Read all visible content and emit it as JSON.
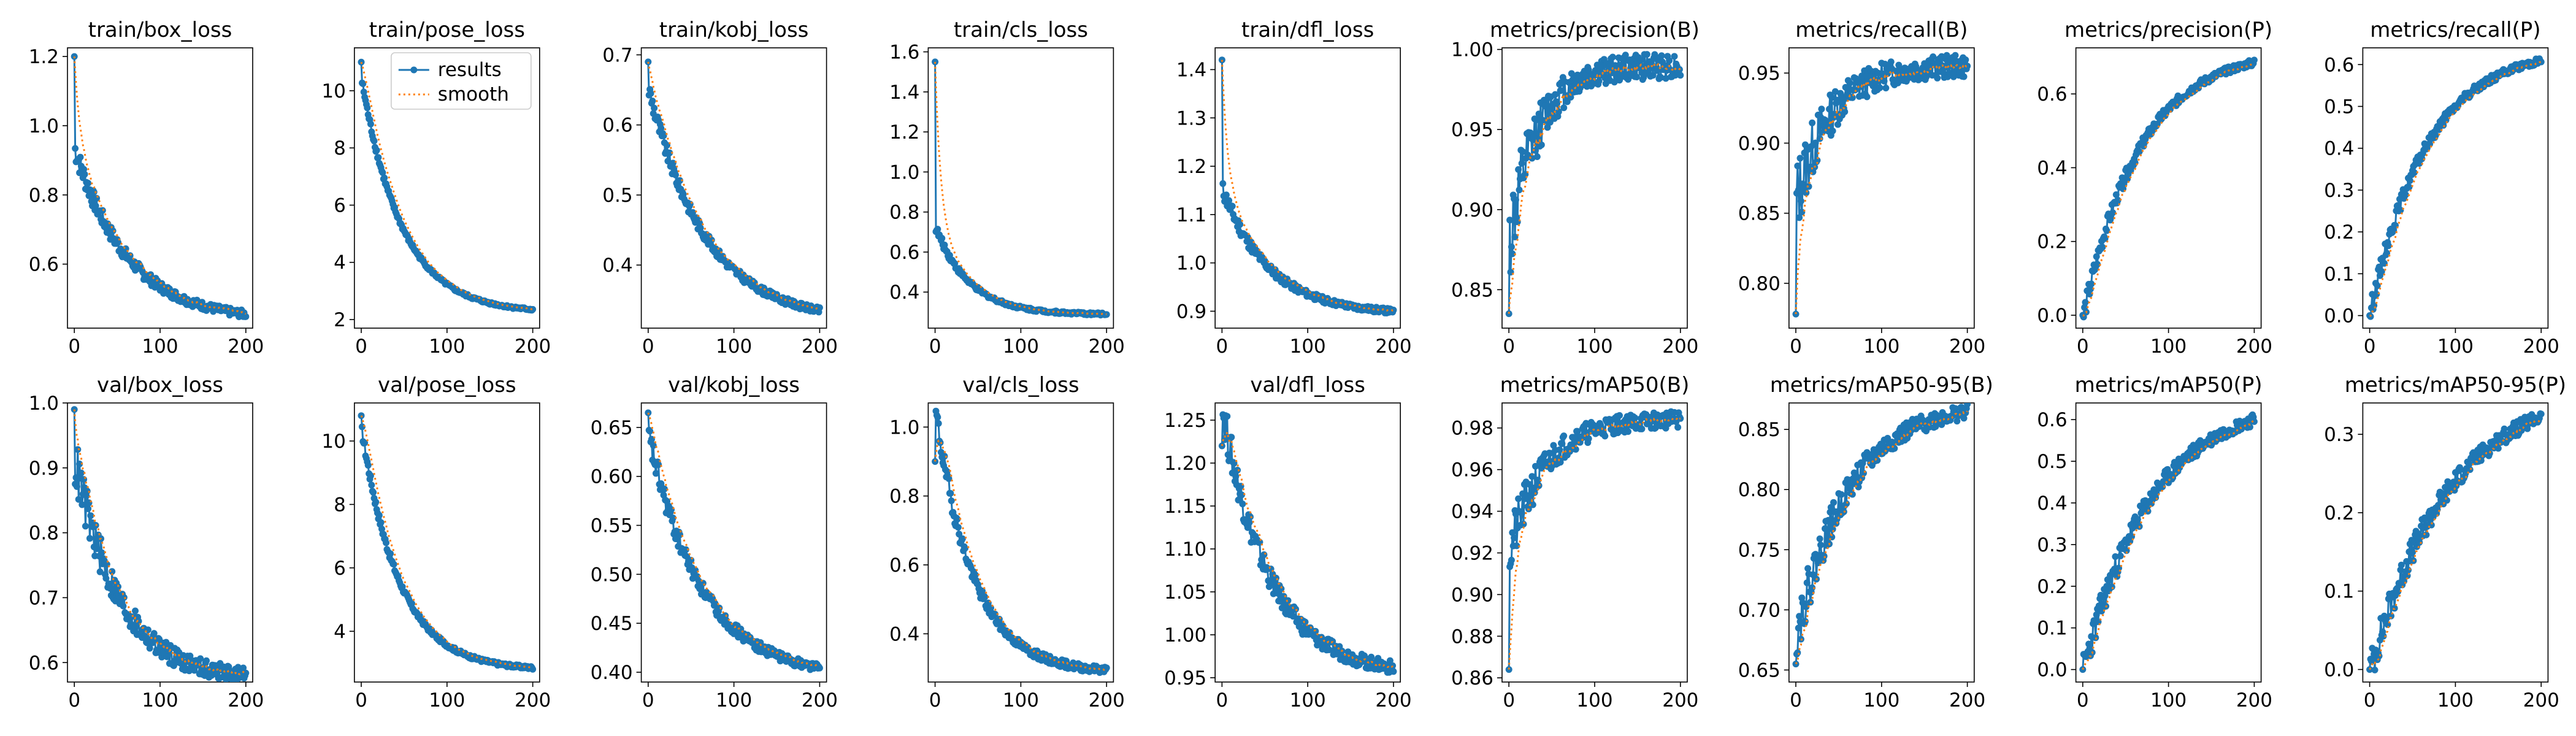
{
  "figure": {
    "legend": [
      "results",
      "smooth"
    ],
    "legend_placement": "top-right of train/pose_loss panel",
    "colors": {
      "results": "#1f77b4",
      "smooth": "#ff7f0e"
    },
    "grid": false
  },
  "chart_data": [
    {
      "title": "train/box_loss",
      "type": "line",
      "xlim": [
        -8,
        208
      ],
      "ylim": [
        0.415,
        1.225
      ],
      "xticks": [
        0,
        100,
        200
      ],
      "yticks": [
        0.6,
        0.8,
        1.0,
        1.2
      ],
      "ytick_labels": [
        "0.6",
        "0.8",
        "1.0",
        "1.2"
      ],
      "shape": "decay",
      "x": [
        0,
        200
      ],
      "start": 1.2,
      "second": 0.93,
      "end": 0.455,
      "curve": 3.2,
      "noise": 0.01
    },
    {
      "title": "train/pose_loss",
      "type": "line",
      "xlim": [
        -8,
        208
      ],
      "ylim": [
        1.7,
        11.5
      ],
      "xticks": [
        0,
        100,
        200
      ],
      "yticks": [
        2,
        4,
        6,
        8,
        10
      ],
      "ytick_labels": [
        "2",
        "4",
        "6",
        "8",
        "10"
      ],
      "shape": "decay",
      "x": [
        0,
        200
      ],
      "start": 11.0,
      "second": 10.3,
      "end": 2.35,
      "curve": 4.2,
      "noise": 0.04,
      "legend": true
    },
    {
      "title": "train/kobj_loss",
      "type": "line",
      "xlim": [
        -8,
        208
      ],
      "ylim": [
        0.31,
        0.71
      ],
      "xticks": [
        0,
        100,
        200
      ],
      "yticks": [
        0.4,
        0.5,
        0.6,
        0.7
      ],
      "ytick_labels": [
        "0.4",
        "0.5",
        "0.6",
        "0.7"
      ],
      "shape": "decay",
      "x": [
        0,
        200
      ],
      "start": 0.69,
      "second": 0.65,
      "end": 0.335,
      "curve": 3.0,
      "noise": 0.004
    },
    {
      "title": "train/cls_loss",
      "type": "line",
      "xlim": [
        -8,
        208
      ],
      "ylim": [
        0.22,
        1.62
      ],
      "xticks": [
        0,
        100,
        200
      ],
      "yticks": [
        0.4,
        0.6,
        0.8,
        1.0,
        1.2,
        1.4,
        1.6
      ],
      "ytick_labels": [
        "0.4",
        "0.6",
        "0.8",
        "1.0",
        "1.2",
        "1.4",
        "1.6"
      ],
      "shape": "decay",
      "x": [
        0,
        200
      ],
      "start": 1.55,
      "second": 0.72,
      "end": 0.29,
      "curve": 5.0,
      "noise": 0.006
    },
    {
      "title": "train/dfl_loss",
      "type": "line",
      "xlim": [
        -8,
        208
      ],
      "ylim": [
        0.865,
        1.445
      ],
      "xticks": [
        0,
        100,
        200
      ],
      "yticks": [
        0.9,
        1.0,
        1.1,
        1.2,
        1.3,
        1.4
      ],
      "ytick_labels": [
        "0.9",
        "1.0",
        "1.1",
        "1.2",
        "1.3",
        "1.4"
      ],
      "shape": "decay",
      "x": [
        0,
        200
      ],
      "start": 1.42,
      "second": 1.15,
      "end": 0.9,
      "curve": 3.6,
      "noise": 0.005
    },
    {
      "title": "metrics/precision(B)",
      "type": "line",
      "xlim": [
        -8,
        208
      ],
      "ylim": [
        0.826,
        1.001
      ],
      "xticks": [
        0,
        100,
        200
      ],
      "yticks": [
        0.85,
        0.9,
        0.95,
        1.0
      ],
      "ytick_labels": [
        "0.85",
        "0.90",
        "0.95",
        "1.00"
      ],
      "shape": "rise",
      "x": [
        0,
        200
      ],
      "start": 0.835,
      "second": 0.88,
      "end": 0.99,
      "curve": 6.0,
      "noise": 0.008
    },
    {
      "title": "metrics/recall(B)",
      "type": "line",
      "xlim": [
        -8,
        208
      ],
      "ylim": [
        0.768,
        0.968
      ],
      "xticks": [
        0,
        100,
        200
      ],
      "yticks": [
        0.8,
        0.85,
        0.9,
        0.95
      ],
      "ytick_labels": [
        "0.80",
        "0.85",
        "0.90",
        "0.95"
      ],
      "shape": "rise",
      "x": [
        0,
        200
      ],
      "start": 0.778,
      "second": 0.86,
      "end": 0.955,
      "curve": 5.0,
      "noise": 0.008
    },
    {
      "title": "metrics/precision(P)",
      "type": "line",
      "xlim": [
        -8,
        208
      ],
      "ylim": [
        -0.035,
        0.725
      ],
      "xticks": [
        0,
        100,
        200
      ],
      "yticks": [
        0.0,
        0.2,
        0.4,
        0.6
      ],
      "ytick_labels": [
        "0.0",
        "0.2",
        "0.4",
        "0.6"
      ],
      "shape": "rise",
      "x": [
        0,
        200
      ],
      "start": 0.0,
      "second": 0.0,
      "end": 0.685,
      "curve": 3.0,
      "noise": 0.008
    },
    {
      "title": "metrics/recall(P)",
      "type": "line",
      "xlim": [
        -8,
        208
      ],
      "ylim": [
        -0.03,
        0.64
      ],
      "xticks": [
        0,
        100,
        200
      ],
      "yticks": [
        0.0,
        0.1,
        0.2,
        0.3,
        0.4,
        0.5,
        0.6
      ],
      "ytick_labels": [
        "0.0",
        "0.1",
        "0.2",
        "0.3",
        "0.4",
        "0.5",
        "0.6"
      ],
      "shape": "rise",
      "x": [
        0,
        200
      ],
      "start": 0.0,
      "second": 0.01,
      "end": 0.61,
      "curve": 3.0,
      "noise": 0.007
    },
    {
      "title": "val/box_loss",
      "type": "line",
      "xlim": [
        -8,
        208
      ],
      "ylim": [
        0.57,
        1.0
      ],
      "xticks": [
        0,
        100,
        200
      ],
      "yticks": [
        0.6,
        0.7,
        0.8,
        0.9,
        1.0
      ],
      "ytick_labels": [
        "0.6",
        "0.7",
        "0.8",
        "0.9",
        "1.0"
      ],
      "shape": "decay",
      "x": [
        0,
        200
      ],
      "start": 0.99,
      "second": 0.91,
      "end": 0.58,
      "curve": 3.8,
      "noise": 0.012
    },
    {
      "title": "val/pose_loss",
      "type": "line",
      "xlim": [
        -8,
        208
      ],
      "ylim": [
        2.4,
        11.2
      ],
      "xticks": [
        0,
        100,
        200
      ],
      "yticks": [
        4,
        6,
        8,
        10
      ],
      "ytick_labels": [
        "4",
        "6",
        "8",
        "10"
      ],
      "shape": "decay",
      "x": [
        0,
        200
      ],
      "start": 10.8,
      "second": 10.3,
      "end": 2.85,
      "curve": 4.5,
      "noise": 0.05
    },
    {
      "title": "val/kobj_loss",
      "type": "line",
      "xlim": [
        -8,
        208
      ],
      "ylim": [
        0.39,
        0.675
      ],
      "xticks": [
        0,
        100,
        200
      ],
      "yticks": [
        0.4,
        0.45,
        0.5,
        0.55,
        0.6,
        0.65
      ],
      "ytick_labels": [
        "0.40",
        "0.45",
        "0.50",
        "0.55",
        "0.60",
        "0.65"
      ],
      "shape": "decay",
      "x": [
        0,
        200
      ],
      "start": 0.665,
      "second": 0.64,
      "end": 0.405,
      "curve": 3.2,
      "noise": 0.004
    },
    {
      "title": "val/cls_loss",
      "type": "line",
      "xlim": [
        -8,
        208
      ],
      "ylim": [
        0.26,
        1.07
      ],
      "xticks": [
        0,
        100,
        200
      ],
      "yticks": [
        0.4,
        0.6,
        0.8,
        1.0
      ],
      "ytick_labels": [
        "0.4",
        "0.6",
        "0.8",
        "1.0"
      ],
      "shape": "decay",
      "x": [
        0,
        200
      ],
      "start": 0.9,
      "second": 1.04,
      "end": 0.295,
      "curve": 4.5,
      "noise": 0.01
    },
    {
      "title": "val/dfl_loss",
      "type": "line",
      "xlim": [
        -8,
        208
      ],
      "ylim": [
        0.945,
        1.27
      ],
      "xticks": [
        0,
        100,
        200
      ],
      "yticks": [
        0.95,
        1.0,
        1.05,
        1.1,
        1.15,
        1.2,
        1.25
      ],
      "ytick_labels": [
        "0.95",
        "1.00",
        "1.05",
        "1.10",
        "1.15",
        "1.20",
        "1.25"
      ],
      "shape": "decay",
      "x": [
        0,
        200
      ],
      "start": 1.22,
      "second": 1.26,
      "end": 0.962,
      "curve": 3.6,
      "noise": 0.007
    },
    {
      "title": "metrics/mAP50(B)",
      "type": "line",
      "xlim": [
        -8,
        208
      ],
      "ylim": [
        0.858,
        0.992
      ],
      "xticks": [
        0,
        100,
        200
      ],
      "yticks": [
        0.86,
        0.88,
        0.9,
        0.92,
        0.94,
        0.96,
        0.98
      ],
      "ytick_labels": [
        "0.86",
        "0.88",
        "0.90",
        "0.92",
        "0.94",
        "0.96",
        "0.98"
      ],
      "shape": "rise",
      "x": [
        0,
        200
      ],
      "start": 0.864,
      "second": 0.92,
      "end": 0.984,
      "curve": 5.0,
      "noise": 0.004
    },
    {
      "title": "metrics/mAP50-95(B)",
      "type": "line",
      "xlim": [
        -8,
        208
      ],
      "ylim": [
        0.64,
        0.872
      ],
      "xticks": [
        0,
        100,
        200
      ],
      "yticks": [
        0.65,
        0.7,
        0.75,
        0.8,
        0.85
      ],
      "ytick_labels": [
        "0.65",
        "0.70",
        "0.75",
        "0.80",
        "0.85"
      ],
      "shape": "rise",
      "x": [
        0,
        200
      ],
      "start": 0.655,
      "second": 0.68,
      "end": 0.865,
      "curve": 3.2,
      "noise": 0.006
    },
    {
      "title": "metrics/mAP50(P)",
      "type": "line",
      "xlim": [
        -8,
        208
      ],
      "ylim": [
        -0.03,
        0.64
      ],
      "xticks": [
        0,
        100,
        200
      ],
      "yticks": [
        0.0,
        0.1,
        0.2,
        0.3,
        0.4,
        0.5,
        0.6
      ],
      "ytick_labels": [
        "0.0",
        "0.1",
        "0.2",
        "0.3",
        "0.4",
        "0.5",
        "0.6"
      ],
      "shape": "rise",
      "x": [
        0,
        200
      ],
      "start": 0.0,
      "second": 0.0,
      "end": 0.6,
      "curve": 2.5,
      "noise": 0.012
    },
    {
      "title": "metrics/mAP50-95(P)",
      "type": "line",
      "xlim": [
        -8,
        208
      ],
      "ylim": [
        -0.016,
        0.34
      ],
      "xticks": [
        0,
        100,
        200
      ],
      "yticks": [
        0.0,
        0.1,
        0.2,
        0.3
      ],
      "ytick_labels": [
        "0.0",
        "0.1",
        "0.2",
        "0.3"
      ],
      "shape": "rise",
      "x": [
        0,
        200
      ],
      "start": 0.0,
      "second": 0.0,
      "end": 0.322,
      "curve": 2.2,
      "noise": 0.007
    }
  ]
}
